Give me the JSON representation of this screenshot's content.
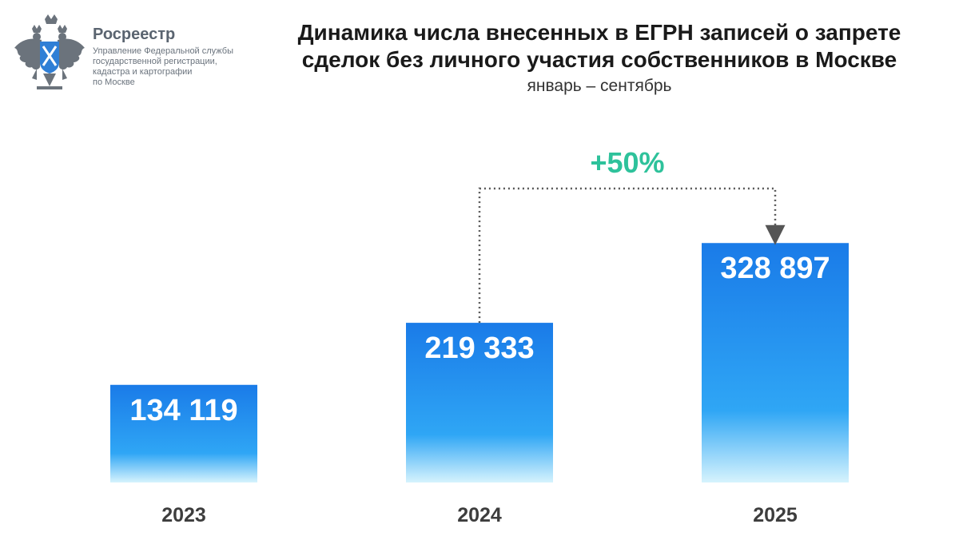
{
  "logo": {
    "name": "Росреестр",
    "subtitle_lines": [
      "Управление Федеральной службы",
      "государственной регистрации,",
      "кадастра и картографии",
      "по Москве"
    ]
  },
  "colors": {
    "bar_top": "#1a7be8",
    "bar_mid": "#2fa6f5",
    "bar_bottom": "#d6f3fd",
    "growth": "#2ec29b",
    "arrow": "#555555"
  },
  "chart_data": {
    "type": "bar",
    "title": "Динамика числа внесенных в ЕГРН записей о запрете сделок без личного участия собственников в Москве",
    "title_lines": [
      "Динамика числа внесенных в ЕГРН записей о запрете",
      "сделок без личного участия собственников в Москве"
    ],
    "subtitle": "январь – сентябрь",
    "categories": [
      "2023",
      "2024",
      "2025"
    ],
    "values": [
      134119,
      219333,
      328897
    ],
    "value_labels": [
      "134 119",
      "219 333",
      "328 897"
    ],
    "ylim": [
      0,
      395000
    ],
    "annotation": {
      "text": "+50%",
      "from_category": "2024",
      "to_category": "2025"
    }
  }
}
